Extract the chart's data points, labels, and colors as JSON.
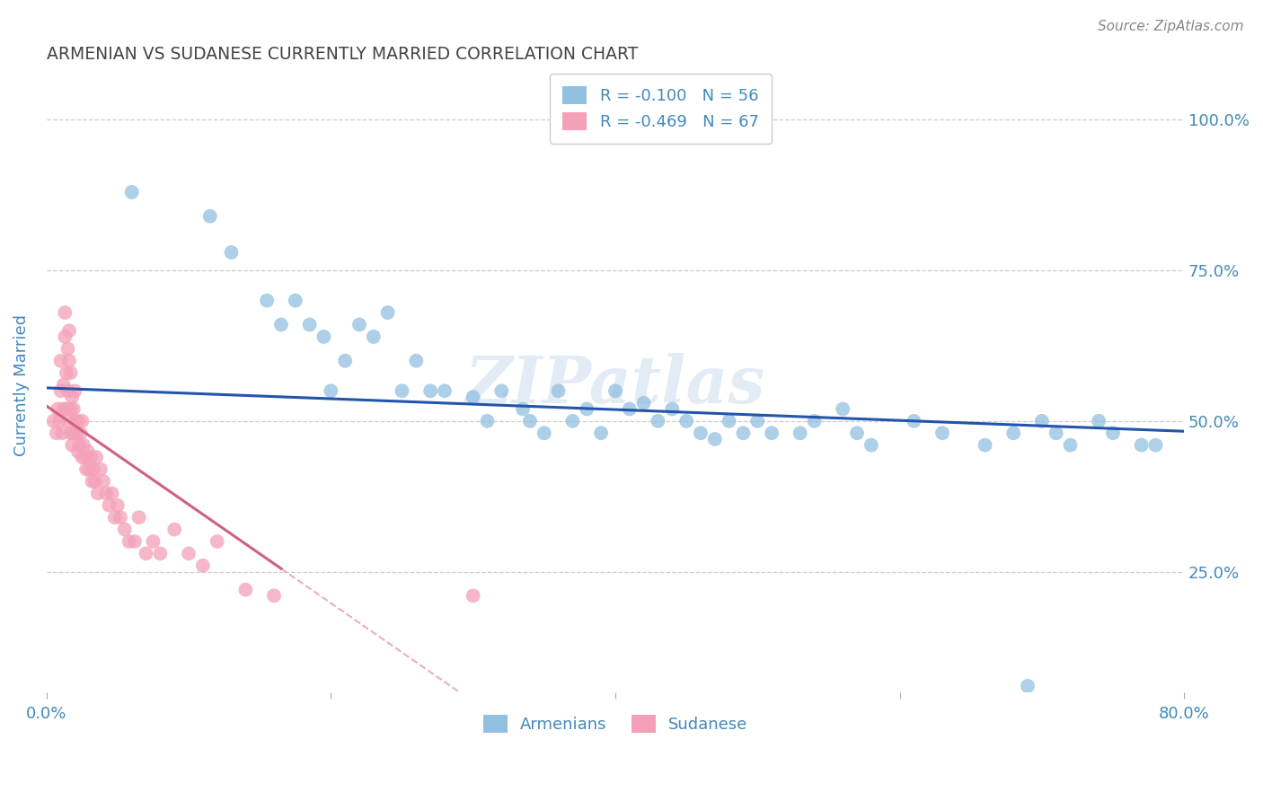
{
  "title": "ARMENIAN VS SUDANESE CURRENTLY MARRIED CORRELATION CHART",
  "source": "Source: ZipAtlas.com",
  "ylabel": "Currently Married",
  "x_min": 0.0,
  "x_max": 0.8,
  "y_min": 0.05,
  "y_max": 1.07,
  "y_ticks": [
    0.25,
    0.5,
    0.75,
    1.0
  ],
  "y_tick_labels": [
    "25.0%",
    "50.0%",
    "75.0%",
    "100.0%"
  ],
  "x_tick_positions": [
    0.0,
    0.2,
    0.4,
    0.6,
    0.8
  ],
  "x_tick_labels": [
    "0.0%",
    "",
    "",
    "",
    "80.0%"
  ],
  "armenian_color": "#92C0E0",
  "sudanese_color": "#F4A0B8",
  "armenian_line_color": "#2255AA",
  "sudanese_line_color": "#D06080",
  "legend_R_armenian": "R = -0.100",
  "legend_N_armenian": "N = 56",
  "legend_R_sudanese": "R = -0.469",
  "legend_N_sudanese": "N = 67",
  "legend_label_armenian": "Armenians",
  "legend_label_sudanese": "Sudanese",
  "armenian_x": [
    0.06,
    0.115,
    0.13,
    0.155,
    0.165,
    0.175,
    0.185,
    0.195,
    0.2,
    0.21,
    0.22,
    0.23,
    0.24,
    0.25,
    0.26,
    0.27,
    0.28,
    0.3,
    0.31,
    0.32,
    0.335,
    0.34,
    0.35,
    0.36,
    0.37,
    0.38,
    0.39,
    0.4,
    0.41,
    0.42,
    0.43,
    0.44,
    0.45,
    0.46,
    0.47,
    0.48,
    0.49,
    0.5,
    0.51,
    0.53,
    0.54,
    0.56,
    0.57,
    0.58,
    0.61,
    0.63,
    0.66,
    0.68,
    0.7,
    0.71,
    0.72,
    0.74,
    0.75,
    0.77,
    0.78,
    0.69
  ],
  "armenian_y": [
    0.88,
    0.84,
    0.78,
    0.7,
    0.66,
    0.7,
    0.66,
    0.64,
    0.55,
    0.6,
    0.66,
    0.64,
    0.68,
    0.55,
    0.6,
    0.55,
    0.55,
    0.54,
    0.5,
    0.55,
    0.52,
    0.5,
    0.48,
    0.55,
    0.5,
    0.52,
    0.48,
    0.55,
    0.52,
    0.53,
    0.5,
    0.52,
    0.5,
    0.48,
    0.47,
    0.5,
    0.48,
    0.5,
    0.48,
    0.48,
    0.5,
    0.52,
    0.48,
    0.46,
    0.5,
    0.48,
    0.46,
    0.48,
    0.5,
    0.48,
    0.46,
    0.5,
    0.48,
    0.46,
    0.46,
    0.06
  ],
  "sudanese_x": [
    0.005,
    0.007,
    0.008,
    0.009,
    0.01,
    0.01,
    0.011,
    0.012,
    0.012,
    0.013,
    0.013,
    0.014,
    0.014,
    0.015,
    0.015,
    0.015,
    0.016,
    0.016,
    0.017,
    0.017,
    0.017,
    0.018,
    0.018,
    0.019,
    0.019,
    0.02,
    0.02,
    0.021,
    0.022,
    0.022,
    0.023,
    0.024,
    0.025,
    0.025,
    0.026,
    0.027,
    0.028,
    0.029,
    0.03,
    0.031,
    0.032,
    0.033,
    0.034,
    0.035,
    0.036,
    0.038,
    0.04,
    0.042,
    0.044,
    0.046,
    0.048,
    0.05,
    0.052,
    0.055,
    0.058,
    0.062,
    0.065,
    0.07,
    0.075,
    0.08,
    0.09,
    0.1,
    0.11,
    0.12,
    0.14,
    0.16,
    0.3
  ],
  "sudanese_y": [
    0.5,
    0.48,
    0.52,
    0.5,
    0.55,
    0.6,
    0.48,
    0.52,
    0.56,
    0.64,
    0.68,
    0.52,
    0.58,
    0.55,
    0.5,
    0.62,
    0.65,
    0.6,
    0.58,
    0.52,
    0.48,
    0.54,
    0.46,
    0.52,
    0.48,
    0.5,
    0.55,
    0.48,
    0.45,
    0.5,
    0.46,
    0.48,
    0.44,
    0.5,
    0.46,
    0.44,
    0.42,
    0.45,
    0.42,
    0.44,
    0.4,
    0.42,
    0.4,
    0.44,
    0.38,
    0.42,
    0.4,
    0.38,
    0.36,
    0.38,
    0.34,
    0.36,
    0.34,
    0.32,
    0.3,
    0.3,
    0.34,
    0.28,
    0.3,
    0.28,
    0.32,
    0.28,
    0.26,
    0.3,
    0.22,
    0.21,
    0.21
  ],
  "sudanese_line_solid_end_x": 0.165,
  "armenian_line_y_at_0": 0.555,
  "armenian_line_y_at_08": 0.483,
  "sudanese_line_y_at_0": 0.525,
  "sudanese_line_y_at_solid_end": 0.255,
  "watermark_line1": "ZIP",
  "watermark_line2": "atlas",
  "background_color": "#FFFFFF",
  "grid_color": "#CCCCCC",
  "title_color": "#444444",
  "text_color": "#4488BB"
}
